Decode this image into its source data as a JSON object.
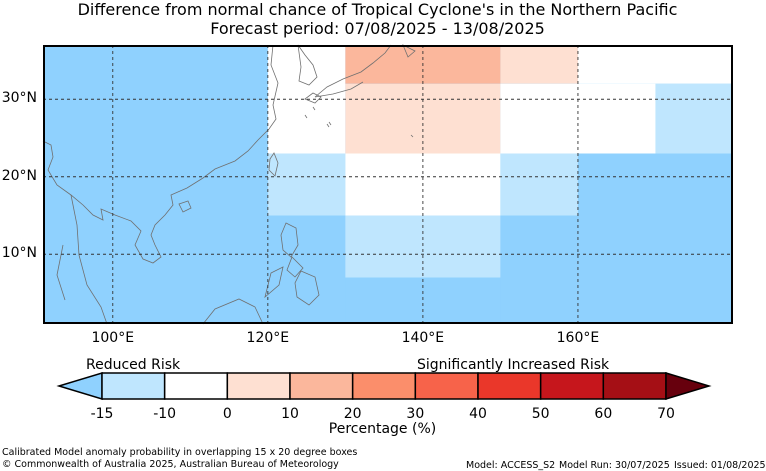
{
  "title": {
    "line1": "Difference from normal chance of Tropical Cyclone's in the Northern Pacific",
    "line2": "Forecast period: 07/08/2025 - 13/08/2025"
  },
  "map": {
    "lon_range": [
      91,
      180
    ],
    "lat_range": [
      1,
      37
    ],
    "lat_ticks": [
      {
        "value": 10,
        "label": "10°N"
      },
      {
        "value": 20,
        "label": "20°N"
      },
      {
        "value": 30,
        "label": "30°N"
      }
    ],
    "lon_ticks": [
      {
        "value": 100,
        "label": "100°E"
      },
      {
        "value": 120,
        "label": "120°E"
      },
      {
        "value": 140,
        "label": "140°E"
      },
      {
        "value": 160,
        "label": "160°E"
      }
    ],
    "background_color": "#8fd1fe",
    "cells": [
      {
        "lon0": 91,
        "lon1": 120,
        "lat0": 1,
        "lat1": 37,
        "color": "#8fd1fe"
      },
      {
        "lon0": 120,
        "lon1": 130,
        "lat0": 23,
        "lat1": 37,
        "color": "#ffffff"
      },
      {
        "lon0": 130,
        "lon1": 150,
        "lat0": 32,
        "lat1": 37,
        "color": "#fbb79c"
      },
      {
        "lon0": 150,
        "lon1": 160,
        "lat0": 32,
        "lat1": 37,
        "color": "#fee0d2"
      },
      {
        "lon0": 160,
        "lon1": 180,
        "lat0": 32,
        "lat1": 37,
        "color": "#ffffff"
      },
      {
        "lon0": 130,
        "lon1": 150,
        "lat0": 23,
        "lat1": 32,
        "color": "#fee0d2"
      },
      {
        "lon0": 150,
        "lon1": 170,
        "lat0": 23,
        "lat1": 32,
        "color": "#ffffff"
      },
      {
        "lon0": 170,
        "lon1": 180,
        "lat0": 23,
        "lat1": 32,
        "color": "#bfe6fe"
      },
      {
        "lon0": 120,
        "lon1": 130,
        "lat0": 15,
        "lat1": 23,
        "color": "#bfe6fe"
      },
      {
        "lon0": 130,
        "lon1": 150,
        "lat0": 15,
        "lat1": 23,
        "color": "#ffffff"
      },
      {
        "lon0": 150,
        "lon1": 160,
        "lat0": 15,
        "lat1": 23,
        "color": "#bfe6fe"
      },
      {
        "lon0": 160,
        "lon1": 180,
        "lat0": 15,
        "lat1": 23,
        "color": "#8fd1fe"
      },
      {
        "lon0": 120,
        "lon1": 130,
        "lat0": 1,
        "lat1": 15,
        "color": "#8fd1fe"
      },
      {
        "lon0": 130,
        "lon1": 150,
        "lat0": 7,
        "lat1": 15,
        "color": "#bfe6fe"
      },
      {
        "lon0": 150,
        "lon1": 180,
        "lat0": 1,
        "lat1": 15,
        "color": "#8fd1fe"
      },
      {
        "lon0": 130,
        "lon1": 150,
        "lat0": 1,
        "lat1": 7,
        "color": "#8fd1fe"
      }
    ]
  },
  "colorbar": {
    "reduced_label": "Reduced Risk",
    "increased_label": "Significantly Increased Risk",
    "axis_label": "Percentage (%)",
    "ticks": [
      "-15",
      "-10",
      "0",
      "10",
      "20",
      "30",
      "40",
      "50",
      "60",
      "70"
    ],
    "low_arrow_color": "#8fd1fe",
    "high_arrow_color": "#67000d",
    "bins": [
      "#bfe6fe",
      "#ffffff",
      "#fee0d2",
      "#fbb79c",
      "#fb8e6b",
      "#f7634a",
      "#ea372a",
      "#c6161c",
      "#a50f15"
    ]
  },
  "footer": {
    "caption": "Calibrated Model anomaly probability in overlapping 15 x 20 degree boxes",
    "copyright": "© Commonwealth of Australia 2025, Australian Bureau of Meteorology",
    "model": "Model: ACCESS_S2",
    "model_run": "Model Run: 30/07/2025",
    "issued": "Issued: 01/08/2025"
  }
}
